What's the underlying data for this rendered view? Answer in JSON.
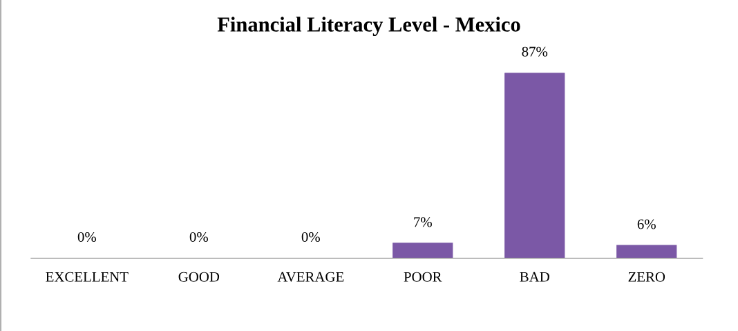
{
  "chart_data": {
    "type": "bar",
    "title": "Financial Literacy Level - Mexico",
    "categories": [
      "EXCELLENT",
      "GOOD",
      "AVERAGE",
      "POOR",
      "BAD",
      "ZERO"
    ],
    "values": [
      0,
      0,
      0,
      7,
      87,
      6
    ],
    "value_labels": [
      "0%",
      "0%",
      "0%",
      "7%",
      "87%",
      "6%"
    ],
    "color": "#7b58a6",
    "grid": false,
    "legend": false
  }
}
